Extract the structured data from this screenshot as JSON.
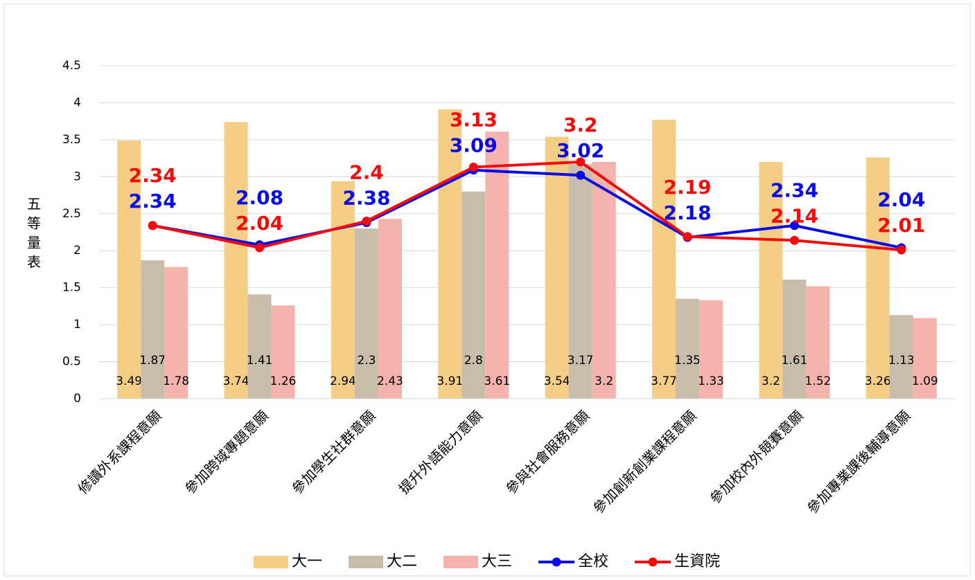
{
  "chart_data": {
    "type": "bar",
    "y_label": "五等量表",
    "categories": [
      "修讀外系課程意願",
      "參加跨域專題意願",
      "參加學生社群意願",
      "提升外語能力意願",
      "參與社會服務意願",
      "參加創新創業課程意願",
      "參加校內外競賽意願",
      "參加專業課後輔導意願"
    ],
    "series": [
      {
        "name": "大一",
        "type": "bar",
        "color": "#f4cd86",
        "values": [
          3.49,
          3.74,
          2.94,
          3.91,
          3.54,
          3.77,
          3.2,
          3.26
        ]
      },
      {
        "name": "大二",
        "type": "bar",
        "color": "#c8bdab",
        "values": [
          1.87,
          1.41,
          2.3,
          2.8,
          3.17,
          1.35,
          1.61,
          1.13
        ]
      },
      {
        "name": "大三",
        "type": "bar",
        "color": "#f4b3ad",
        "values": [
          1.78,
          1.26,
          2.43,
          3.61,
          3.2,
          1.33,
          1.52,
          1.09
        ]
      },
      {
        "name": "全校",
        "type": "line",
        "color": "#0a0ae8",
        "values": [
          2.34,
          2.08,
          2.38,
          3.09,
          3.02,
          2.18,
          2.34,
          2.04
        ]
      },
      {
        "name": "生資院",
        "type": "line",
        "color": "#f50a0a",
        "values": [
          2.34,
          2.04,
          2.4,
          3.13,
          3.2,
          2.19,
          2.14,
          2.01
        ]
      }
    ],
    "ylim": [
      0,
      4.5
    ],
    "yticks": [
      0,
      0.5,
      1,
      1.5,
      2,
      2.5,
      3,
      3.5,
      4,
      4.5
    ],
    "grid": true,
    "legend": "bottom"
  }
}
